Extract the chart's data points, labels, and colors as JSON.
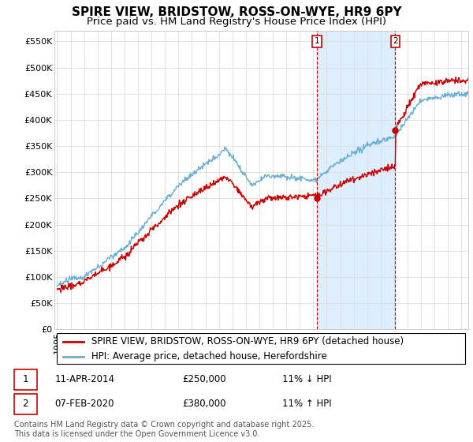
{
  "title": "SPIRE VIEW, BRIDSTOW, ROSS-ON-WYE, HR9 6PY",
  "subtitle": "Price paid vs. HM Land Registry's House Price Index (HPI)",
  "ylabel_ticks": [
    "£0",
    "£50K",
    "£100K",
    "£150K",
    "£200K",
    "£250K",
    "£300K",
    "£350K",
    "£400K",
    "£450K",
    "£500K",
    "£550K"
  ],
  "ytick_values": [
    0,
    50000,
    100000,
    150000,
    200000,
    250000,
    300000,
    350000,
    400000,
    450000,
    500000,
    550000
  ],
  "ylim": [
    0,
    570000
  ],
  "xlim_start": 1994.8,
  "xlim_end": 2025.5,
  "hpi_color": "#6baed6",
  "price_color": "#cc0000",
  "shade_color": "#ddeeff",
  "marker1_date": 2014.27,
  "marker2_date": 2020.09,
  "marker1_label": "1",
  "marker2_label": "2",
  "legend_entry1": "SPIRE VIEW, BRIDSTOW, ROSS-ON-WYE, HR9 6PY (detached house)",
  "legend_entry2": "HPI: Average price, detached house, Herefordshire",
  "annotation1_date": "11-APR-2014",
  "annotation1_price": "£250,000",
  "annotation1_hpi": "11% ↓ HPI",
  "annotation2_date": "07-FEB-2020",
  "annotation2_price": "£380,000",
  "annotation2_hpi": "11% ↑ HPI",
  "footer": "Contains HM Land Registry data © Crown copyright and database right 2025.\nThis data is licensed under the Open Government Licence v3.0.",
  "background_color": "#ffffff",
  "grid_color": "#dddddd",
  "title_fontsize": 11,
  "subtitle_fontsize": 9.5,
  "tick_fontsize": 8,
  "legend_fontsize": 8.5,
  "annotation_fontsize": 8.5,
  "footer_fontsize": 7
}
